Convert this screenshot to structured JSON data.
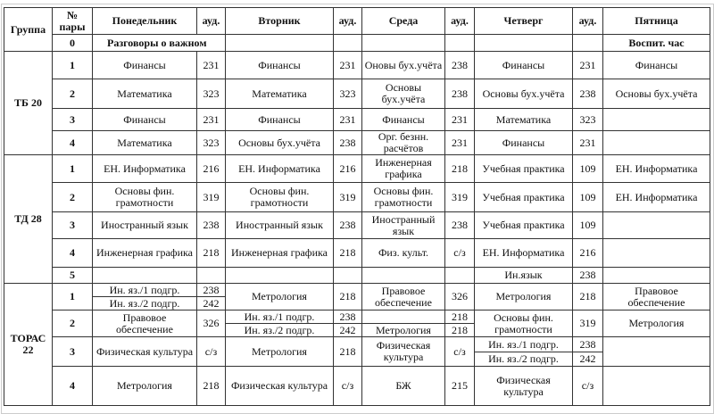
{
  "header": {
    "group": "Группа",
    "pair": "№ пары",
    "days": [
      "Понедельник",
      "Вторник",
      "Среда",
      "Четверг",
      "Пятница"
    ],
    "room": "ауд."
  },
  "row0": {
    "num": "0",
    "monday": "Разговоры о важном",
    "friday": "Воспит. час"
  },
  "groups": [
    {
      "name": "ТБ 20",
      "pairs": [
        {
          "num": "1",
          "days": [
            {
              "s": "Финансы",
              "r": "231"
            },
            {
              "s": "Финансы",
              "r": "231"
            },
            {
              "s": "Оновы бух.учёта",
              "r": "238"
            },
            {
              "s": "Финансы",
              "r": "231"
            }
          ],
          "friday": "Финансы"
        },
        {
          "num": "2",
          "days": [
            {
              "s": "Математика",
              "r": "323"
            },
            {
              "s": "Математика",
              "r": "323"
            },
            {
              "s": "Основы бух.учёта",
              "r": "238"
            },
            {
              "s": "Основы бух.учёта",
              "r": "238"
            }
          ],
          "friday": "Основы бух.учёта"
        },
        {
          "num": "3",
          "days": [
            {
              "s": "Финансы",
              "r": "231"
            },
            {
              "s": "Финансы",
              "r": "231"
            },
            {
              "s": "Финансы",
              "r": "231"
            },
            {
              "s": "Математика",
              "r": "323"
            }
          ],
          "friday": ""
        },
        {
          "num": "4",
          "days": [
            {
              "s": "Математика",
              "r": "323"
            },
            {
              "s": "Основы бух.учёта",
              "r": "238"
            },
            {
              "s": "Орг. безнн. расчётов",
              "r": "231"
            },
            {
              "s": "Финансы",
              "r": "231"
            }
          ],
          "friday": ""
        }
      ]
    },
    {
      "name": "ТД 28",
      "pairs": [
        {
          "num": "1",
          "days": [
            {
              "s": "ЕН. Информатика",
              "r": "216"
            },
            {
              "s": "ЕН. Информатика",
              "r": "216"
            },
            {
              "s": "Инженерная графика",
              "r": "218"
            },
            {
              "s": "Учебная практика",
              "r": "109"
            }
          ],
          "friday": "ЕН. Информатика"
        },
        {
          "num": "2",
          "days": [
            {
              "s": "Основы фин. грамотности",
              "r": "319"
            },
            {
              "s": "Основы фин. грамотности",
              "r": "319"
            },
            {
              "s": "Основы фин. грамотности",
              "r": "319"
            },
            {
              "s": "Учебная практика",
              "r": "109"
            }
          ],
          "friday": "ЕН. Информатика"
        },
        {
          "num": "3",
          "days": [
            {
              "s": "Иностранный язык",
              "r": "238"
            },
            {
              "s": "Иностранный язык",
              "r": "238"
            },
            {
              "s": "Иностранный язык",
              "r": "238"
            },
            {
              "s": "Учебная практика",
              "r": "109"
            }
          ],
          "friday": ""
        },
        {
          "num": "4",
          "days": [
            {
              "s": "Инженерная графика",
              "r": "218"
            },
            {
              "s": "Инженерная графика",
              "r": "218"
            },
            {
              "s": "Физ. культ.",
              "r": "с/з"
            },
            {
              "s": "ЕН. Информатика",
              "r": "216"
            }
          ],
          "friday": ""
        },
        {
          "num": "5",
          "days": [
            {
              "s": "",
              "r": ""
            },
            {
              "s": "",
              "r": ""
            },
            {
              "s": "",
              "r": ""
            },
            {
              "s": "Ин.язык",
              "r": "238"
            }
          ],
          "friday": ""
        }
      ]
    },
    {
      "name": "ТОРАС 22",
      "pairs": [
        {
          "num": "1",
          "days": [
            {
              "split": [
                {
                  "s": "Ин. яз./1 подгр.",
                  "r": "238"
                },
                {
                  "s": "Ин. яз./2 подгр.",
                  "r": "242"
                }
              ]
            },
            {
              "s": "Метрология",
              "r": "218"
            },
            {
              "s": "Правовое обеспечение",
              "r": "326"
            },
            {
              "s": "Метрология",
              "r": "218"
            }
          ],
          "friday": "Правовое обеспечение"
        },
        {
          "num": "2",
          "days": [
            {
              "s": "Правовое обеспечение",
              "r": "326"
            },
            {
              "split": [
                {
                  "s": "Ин. яз./1 подгр.",
                  "r": "238"
                },
                {
                  "s": "Ин. яз./2 подгр.",
                  "r": "242"
                }
              ]
            },
            {
              "split": [
                {
                  "s": "",
                  "r": "218"
                },
                {
                  "s": "Метрология",
                  "r": "218"
                }
              ]
            },
            {
              "s": "Основы фин. грамотности",
              "r": "319"
            }
          ],
          "friday": "Метрология"
        },
        {
          "num": "3",
          "days": [
            {
              "s": "Физическая культура",
              "r": "с/з"
            },
            {
              "s": "Метрология",
              "r": "218"
            },
            {
              "s": "Физическая культура",
              "r": "с/з"
            },
            {
              "split": [
                {
                  "s": "Ин. яз./1 подгр.",
                  "r": "238"
                },
                {
                  "s": "Ин. яз./2 подгр.",
                  "r": "242"
                }
              ]
            }
          ],
          "friday": ""
        },
        {
          "num": "4",
          "days": [
            {
              "s": "Метрология",
              "r": "218"
            },
            {
              "s": "Физическая культура",
              "r": "с/з"
            },
            {
              "s": "БЖ",
              "r": "215"
            },
            {
              "s": "Физическая культура",
              "r": "с/з"
            }
          ],
          "friday": ""
        }
      ]
    }
  ]
}
